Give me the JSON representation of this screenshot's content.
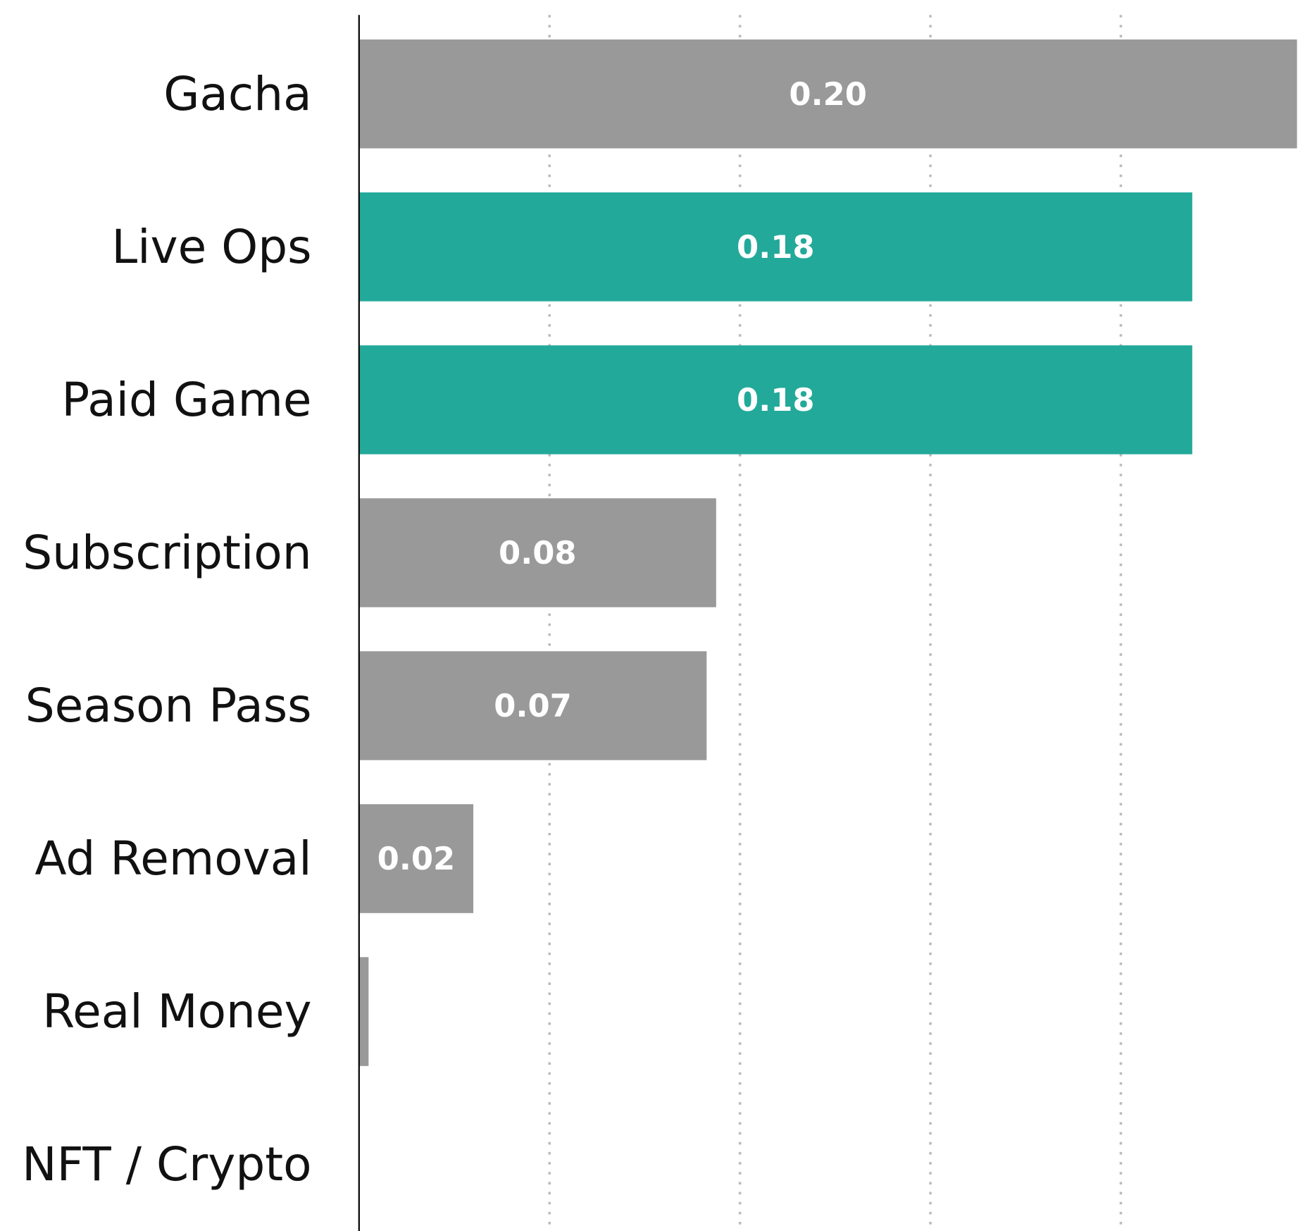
{
  "chart_data": {
    "type": "barh",
    "categories": [
      "Gacha",
      "Live Ops",
      "Paid Game",
      "Subscription",
      "Season Pass",
      "Ad Removal",
      "Real Money",
      "NFT / Crypto"
    ],
    "values": [
      0.197,
      0.175,
      0.175,
      0.075,
      0.073,
      0.024,
      0.002,
      0
    ],
    "value_labels": [
      "0.20",
      "0.18",
      "0.18",
      "0.08",
      "0.07",
      "0.02",
      null,
      null
    ],
    "colors": [
      "#999999",
      "#22a99a",
      "#22a99a",
      "#999999",
      "#999999",
      "#999999",
      "#999999",
      "#999999"
    ],
    "xlim": [
      0,
      0.197
    ],
    "xticks": [
      0.04,
      0.08,
      0.12,
      0.16
    ],
    "grid": true
  }
}
